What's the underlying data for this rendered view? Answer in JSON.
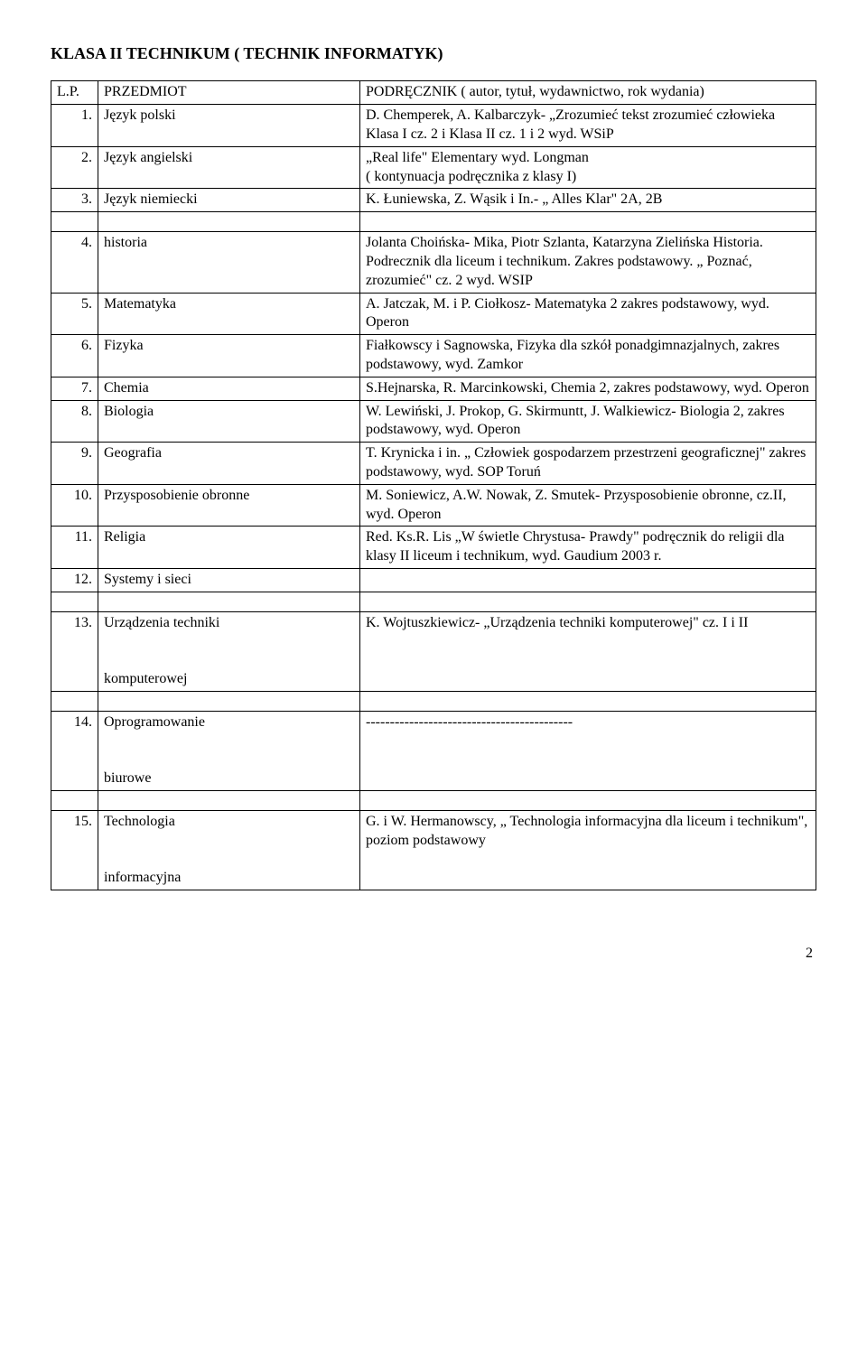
{
  "title": "KLASA II TECHNIKUM ( TECHNIK INFORMATYK)",
  "header": {
    "lp": "L.P.",
    "subject": "PRZEDMIOT",
    "book": "PODRĘCZNIK ( autor, tytuł, wydawnictwo, rok wydania)"
  },
  "rows": [
    {
      "n": "1.",
      "subject": "Język polski",
      "book": "D. Chemperek, A. Kalbarczyk- „Zrozumieć tekst zrozumieć człowieka Klasa I  cz. 2 i Klasa II cz. 1 i 2 wyd. WSiP"
    },
    {
      "n": "2.",
      "subject": "Język angielski",
      "book": "„Real life\" Elementary wyd. Longman\n( kontynuacja podręcznika z klasy I)"
    },
    {
      "n": "3.",
      "subject": "Język niemiecki",
      "book": "K. Łuniewska, Z. Wąsik i In.- „ Alles Klar\" 2A, 2B"
    },
    {
      "n": "4.",
      "subject": "historia",
      "book": "Jolanta Choińska- Mika, Piotr Szlanta, Katarzyna Zielińska Historia. Podrecznik dla liceum i technikum. Zakres podstawowy. „ Poznać, zrozumieć\" cz. 2 wyd. WSIP"
    },
    {
      "n": "5.",
      "subject": "Matematyka",
      "book": "A. Jatczak, M. i P. Ciołkosz- Matematyka 2 zakres podstawowy, wyd. Operon"
    },
    {
      "n": "6.",
      "subject": "Fizyka",
      "book": "Fiałkowscy i Sagnowska, Fizyka dla szkół ponadgimnazjalnych, zakres podstawowy, wyd. Zamkor"
    },
    {
      "n": "7.",
      "subject": "Chemia",
      "book": "S.Hejnarska, R. Marcinkowski, Chemia 2, zakres podstawowy, wyd. Operon"
    },
    {
      "n": "8.",
      "subject": "Biologia",
      "book": "W. Lewiński, J. Prokop, G. Skirmuntt, J. Walkiewicz- Biologia 2, zakres podstawowy, wyd. Operon"
    },
    {
      "n": "9.",
      "subject": "Geografia",
      "book": "T. Krynicka i in. „ Człowiek gospodarzem przestrzeni geograficznej\" zakres podstawowy, wyd. SOP Toruń"
    },
    {
      "n": "10.",
      "subject": "Przysposobienie obronne",
      "book": "M. Soniewicz, A.W. Nowak, Z. Smutek- Przysposobienie obronne, cz.II, wyd. Operon"
    },
    {
      "n": "11.",
      "subject": "Religia",
      "book": "Red. Ks.R. Lis „W świetle Chrystusa- Prawdy\" podręcznik do religii dla klasy II liceum i technikum, wyd. Gaudium 2003 r."
    },
    {
      "n": "12.",
      "subject": "Systemy i sieci",
      "book": ""
    },
    {
      "n": "13.",
      "subject": "Urządzenia techniki\n\nkomputerowej",
      "book": "K. Wojtuszkiewicz- „Urządzenia techniki komputerowej\" cz. I  i II"
    },
    {
      "n": "14.",
      "subject": "Oprogramowanie\n\nbiurowe",
      "book": "-------------------------------------------"
    },
    {
      "n": "15.",
      "subject": "Technologia\n\ninformacyjna",
      "book": "G. i W. Hermanowscy, „ Technologia informacyjna dla liceum i technikum\", poziom podstawowy"
    }
  ],
  "pageNumber": "2"
}
